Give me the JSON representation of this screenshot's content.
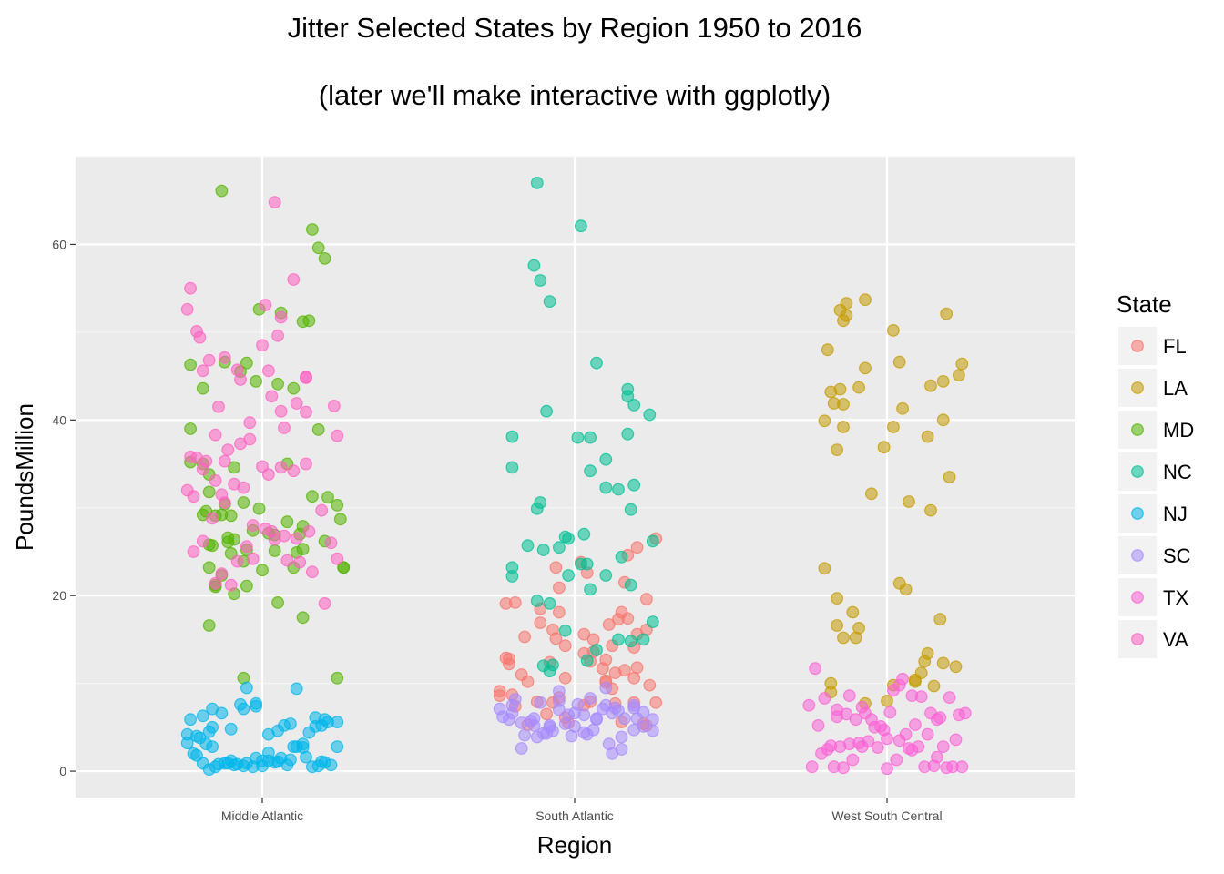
{
  "chart_data": {
    "type": "scatter",
    "title": "Jitter Selected States by Region 1950 to 2016",
    "subtitle": "(later we'll make interactive with ggplotly)",
    "xlabel": "Region",
    "ylabel": "PoundsMillion",
    "categories": [
      "Middle Atlantic",
      "South Atlantic",
      "West South Central"
    ],
    "ylim": [
      -3,
      70
    ],
    "yticks": [
      0,
      20,
      40,
      60
    ],
    "grid": true,
    "legend": {
      "title": "State",
      "position": "right"
    },
    "series": [
      {
        "name": "FL",
        "color": "#F8766D",
        "category": "South Atlantic",
        "x": [
          0.26,
          -0.06,
          -0.19,
          0.02,
          -0.05,
          0.2,
          0.17,
          -0.22,
          -0.11,
          0.04,
          0.16,
          0.23,
          -0.05,
          -0.11,
          0.15,
          -0.07,
          0.17,
          -0.16,
          0.11,
          0.14,
          0.23,
          0.2,
          -0.03,
          0.03,
          -0.06,
          0.06,
          0.12,
          -0.22,
          0.06,
          0.19,
          0.03,
          -0.21,
          -0.08,
          0.05,
          0.2,
          0.16,
          -0.17,
          0.1,
          -0.15,
          0.09,
          -0.21,
          0.19,
          -0.24,
          0.1,
          0.13,
          0.1,
          -0.03,
          0.24,
          0.12,
          -0.05,
          -0.2,
          -0.24,
          -0.07,
          0.13,
          0.19,
          -0.12,
          0.05,
          -0.19,
          -0.02,
          0.22,
          0.23,
          -0.03,
          -0.09,
          -0.15,
          0.15,
          0.03,
          0.26
        ],
        "y": [
          26.5,
          23.2,
          19.2,
          23.8,
          20.9,
          25.5,
          24.6,
          19.1,
          18.5,
          22.6,
          21.5,
          19.6,
          18.1,
          16.9,
          18.1,
          16.1,
          17.4,
          15.3,
          16.7,
          17.3,
          16.1,
          15.6,
          14.3,
          15.6,
          15.1,
          15.0,
          14.3,
          12.9,
          13.6,
          14.1,
          13.4,
          12.2,
          12.4,
          12.5,
          11.8,
          11.5,
          11.0,
          12.7,
          10.2,
          11.7,
          12.8,
          10.6,
          9.1,
          10.1,
          11.2,
          10.3,
          10.6,
          9.8,
          9.4,
          8.4,
          8.7,
          8.6,
          7.8,
          7.7,
          7.8,
          7.9,
          7.9,
          7.4,
          5.5,
          5.4,
          5.2,
          6.1,
          6.5,
          5.3,
          5.6,
          7.5,
          7.8
        ]
      },
      {
        "name": "LA",
        "color": "#C49A00",
        "category": "West South Central",
        "x": [
          -0.13,
          -0.15,
          -0.07,
          -0.14,
          0.02,
          0.19,
          0.18,
          -0.19,
          -0.13,
          -0.07,
          -0.18,
          0.04,
          0.24,
          -0.14,
          -0.2,
          0.23,
          -0.16,
          0.02,
          0.14,
          0.05,
          -0.09,
          0.13,
          -0.14,
          -0.01,
          -0.15,
          -0.17,
          0.18,
          -0.05,
          0.2,
          0.14,
          0.07,
          0.06,
          0.04,
          -0.16,
          -0.2,
          0.17,
          -0.11,
          -0.1,
          -0.09,
          -0.16,
          -0.14,
          0.13,
          0.09,
          0.12,
          0.09,
          0.18,
          0.22,
          0.02,
          0.15,
          0.11,
          -0.18,
          -0.18,
          0.0,
          -0.07
        ],
        "y": [
          53.3,
          52.5,
          53.7,
          51.3,
          50.2,
          52.1,
          44.4,
          48.0,
          51.9,
          45.9,
          43.2,
          46.6,
          46.4,
          41.8,
          39.9,
          45.1,
          36.6,
          39.2,
          43.9,
          41.3,
          43.7,
          38.1,
          39.2,
          36.9,
          43.5,
          41.9,
          40.0,
          31.6,
          33.5,
          29.7,
          30.7,
          20.7,
          21.4,
          19.7,
          23.1,
          17.3,
          18.1,
          15.2,
          16.3,
          16.6,
          15.2,
          13.4,
          10.2,
          12.5,
          10.4,
          12.3,
          11.9,
          9.8,
          9.7,
          11.2,
          10.0,
          9.0,
          8.0,
          7.7
        ]
      },
      {
        "name": "MD",
        "color": "#53B400",
        "category": "Middle Atlantic",
        "x": [
          -0.13,
          0.16,
          0.18,
          0.13,
          -0.01,
          0.2,
          0.06,
          -0.23,
          -0.12,
          0.15,
          -0.05,
          -0.02,
          0.05,
          0.1,
          -0.07,
          -0.23,
          -0.19,
          -0.17,
          0.08,
          0.18,
          0.25,
          0.21,
          0.16,
          -0.23,
          -0.09,
          -0.19,
          -0.18,
          -0.15,
          -0.19,
          -0.12,
          -0.17,
          -0.06,
          0.08,
          0.02,
          -0.13,
          -0.1,
          -0.16,
          -0.01,
          0.24,
          -0.03,
          0.12,
          -0.11,
          -0.09,
          -0.17,
          -0.05,
          0.04,
          0.1,
          0.11,
          -0.06,
          0.0,
          -0.13,
          0.2,
          0.13,
          0.13,
          -0.11,
          0.04,
          -0.15,
          0.26,
          0.26,
          -0.05,
          -0.17,
          -0.1,
          -0.15,
          -0.09,
          0.05,
          -0.17,
          0.13,
          -0.06,
          0.24
        ],
        "y": [
          66.1,
          61.7,
          59.6,
          51.2,
          52.6,
          58.4,
          52.2,
          46.3,
          46.6,
          51.3,
          46.5,
          44.4,
          44.1,
          43.6,
          45.5,
          39.0,
          43.6,
          33.8,
          35.0,
          38.9,
          28.7,
          31.2,
          31.3,
          35.2,
          34.6,
          35.0,
          29.6,
          29.1,
          29.2,
          30.4,
          31.8,
          30.6,
          28.4,
          27.1,
          29.2,
          29.1,
          25.7,
          29.9,
          30.3,
          27.4,
          27.0,
          26.6,
          26.4,
          25.8,
          25.2,
          26.9,
          23.2,
          24.9,
          23.9,
          22.9,
          22.3,
          26.2,
          25.3,
          27.9,
          26.1,
          25.1,
          21.2,
          23.2,
          23.2,
          21.1,
          23.2,
          24.8,
          21.0,
          20.2,
          19.2,
          16.6,
          17.5,
          10.6,
          10.6
        ]
      },
      {
        "name": "NC",
        "color": "#00C094",
        "category": "South Atlantic",
        "x": [
          -0.12,
          0.02,
          -0.13,
          -0.11,
          -0.08,
          0.07,
          0.17,
          0.17,
          0.19,
          -0.09,
          0.17,
          0.24,
          0.25,
          -0.2,
          -0.2,
          0.01,
          0.05,
          0.05,
          0.1,
          0.14,
          0.1,
          -0.11,
          -0.2,
          -0.15,
          0.18,
          -0.1,
          -0.12,
          -0.03,
          -0.12,
          0.19,
          0.22,
          -0.02,
          0.04,
          0.15,
          0.02,
          -0.05,
          -0.2,
          0.18,
          -0.02,
          0.03,
          -0.08,
          0.04,
          0.07,
          0.05,
          -0.03,
          0.18,
          0.1,
          -0.07,
          0.14,
          -0.08,
          -0.1,
          0.25
        ],
        "y": [
          67.0,
          62.1,
          57.6,
          55.9,
          53.5,
          46.5,
          43.5,
          42.7,
          41.7,
          41.0,
          38.4,
          40.6,
          26.2,
          38.1,
          34.6,
          38.0,
          38.0,
          34.2,
          32.3,
          32.1,
          35.5,
          30.6,
          22.2,
          25.7,
          29.8,
          25.2,
          29.9,
          26.7,
          19.4,
          32.6,
          15.0,
          22.3,
          23.6,
          24.4,
          23.6,
          25.5,
          23.2,
          21.2,
          26.5,
          27.0,
          19.1,
          12.6,
          13.8,
          20.7,
          16.0,
          14.8,
          22.3,
          12.1,
          15.0,
          11.4,
          12.0,
          17.0
        ]
      },
      {
        "name": "NJ",
        "color": "#00B6EB",
        "category": "Middle Atlantic",
        "x": [
          -0.23,
          -0.19,
          -0.2,
          -0.17,
          -0.16,
          -0.13,
          -0.1,
          -0.07,
          -0.05,
          -0.02,
          0.02,
          0.05,
          0.07,
          0.09,
          0.11,
          0.13,
          0.17,
          0.19,
          0.2,
          0.21,
          0.24,
          0.24,
          -0.24,
          -0.22,
          -0.21,
          -0.19,
          -0.17,
          -0.15,
          -0.12,
          -0.1,
          -0.08,
          -0.05,
          -0.02,
          0.0,
          0.02,
          0.04,
          0.06,
          0.09,
          0.11,
          0.14,
          0.16,
          0.18,
          0.2,
          -0.24,
          -0.21,
          -0.18,
          -0.16,
          -0.14,
          -0.11,
          -0.09,
          -0.06,
          -0.03,
          0.0,
          0.02,
          0.05,
          0.08,
          0.1,
          0.13,
          0.15,
          0.17,
          0.19,
          0.22,
          -0.02,
          -0.06,
          -0.16
        ],
        "y": [
          5.9,
          6.3,
          3.8,
          4.5,
          5.0,
          6.6,
          4.8,
          7.6,
          9.5,
          7.7,
          4.2,
          4.6,
          5.2,
          5.4,
          9.4,
          3.1,
          6.1,
          5.2,
          5.9,
          5.6,
          2.8,
          5.6,
          3.2,
          2.0,
          1.8,
          0.9,
          0.2,
          0.5,
          0.9,
          1.2,
          0.8,
          0.9,
          1.5,
          1.2,
          2.1,
          1.0,
          1.5,
          1.3,
          2.8,
          1.6,
          0.5,
          0.6,
          1.0,
          4.2,
          4.0,
          3.1,
          2.8,
          0.8,
          0.9,
          0.7,
          0.6,
          0.5,
          0.6,
          1.2,
          1.1,
          0.7,
          2.8,
          2.7,
          4.4,
          5.1,
          1.1,
          0.7,
          7.4,
          7.1,
          7.1
        ]
      },
      {
        "name": "SC",
        "color": "#A58AFF",
        "category": "South Atlantic",
        "x": [
          -0.24,
          -0.2,
          -0.17,
          -0.14,
          -0.11,
          -0.08,
          -0.05,
          -0.02,
          0.01,
          0.04,
          0.07,
          0.1,
          0.13,
          0.16,
          0.19,
          0.22,
          0.25,
          -0.23,
          -0.2,
          -0.16,
          -0.13,
          -0.1,
          -0.07,
          -0.03,
          0.0,
          0.03,
          0.06,
          0.09,
          0.12,
          0.15,
          0.19,
          0.22,
          0.25,
          -0.21,
          -0.17,
          -0.13,
          -0.09,
          -0.05,
          -0.01,
          0.03,
          0.07,
          0.11,
          0.15,
          0.19,
          -0.19,
          -0.05,
          0.05,
          0.14,
          -0.12,
          0.0,
          0.1,
          0.2,
          -0.08,
          0.12
        ],
        "y": [
          7.1,
          6.6,
          5.5,
          5.7,
          7.8,
          5.2,
          8.0,
          6.4,
          7.6,
          4.2,
          5.9,
          7.5,
          7.2,
          6.0,
          7.2,
          6.7,
          5.9,
          6.2,
          7.5,
          4.1,
          5.2,
          4.3,
          4.6,
          5.4,
          6.6,
          6.4,
          4.7,
          7.1,
          6.6,
          3.9,
          7.5,
          5.1,
          4.6,
          5.9,
          2.6,
          6.0,
          4.3,
          7.0,
          4.0,
          4.4,
          6.0,
          3.1,
          2.5,
          4.7,
          8.2,
          9.1,
          8.3,
          6.9,
          3.9,
          5.1,
          9.5,
          6.0,
          5.0,
          2.0
        ]
      },
      {
        "name": "TX",
        "color": "#FB61D7",
        "category": "West South Central",
        "x": [
          -0.25,
          -0.22,
          -0.19,
          -0.16,
          -0.13,
          -0.1,
          -0.07,
          -0.04,
          -0.01,
          0.02,
          0.05,
          0.08,
          0.11,
          0.14,
          0.17,
          0.2,
          0.23,
          0.25,
          -0.23,
          -0.2,
          -0.17,
          -0.14,
          -0.11,
          -0.08,
          -0.05,
          -0.02,
          0.01,
          0.04,
          0.07,
          0.1,
          0.13,
          0.16,
          0.19,
          0.22,
          0.24,
          -0.21,
          -0.18,
          -0.15,
          -0.12,
          -0.09,
          -0.06,
          -0.03,
          0.0,
          0.03,
          0.06,
          0.09,
          0.12,
          0.15,
          0.18,
          0.21,
          -0.24,
          -0.16,
          -0.08,
          0.0,
          0.08,
          0.16,
          -0.12,
          0.04
        ],
        "y": [
          7.5,
          5.2,
          2.5,
          6.2,
          6.5,
          5.9,
          6.6,
          5.0,
          4.7,
          9.2,
          10.5,
          8.6,
          8.5,
          6.6,
          6.1,
          8.4,
          6.4,
          6.6,
          11.7,
          8.3,
          0.5,
          0.4,
          1.3,
          7.3,
          5.9,
          5.1,
          6.7,
          3.5,
          2.6,
          2.8,
          4.2,
          5.9,
          0.4,
          3.6,
          0.5,
          2.0,
          2.9,
          2.8,
          3.1,
          3.2,
          3.4,
          2.7,
          0.3,
          1.3,
          4.2,
          5.3,
          0.5,
          0.6,
          2.8,
          0.5,
          0.5,
          7.0,
          2.8,
          3.7,
          2.4,
          1.6,
          8.6,
          9.8
        ]
      },
      {
        "name": "VA",
        "color": "#FF61C3",
        "category": "Middle Atlantic",
        "x": [
          0.04,
          0.1,
          -0.23,
          -0.24,
          -0.21,
          -0.2,
          -0.17,
          0.01,
          0.06,
          0.05,
          0.14,
          0.23,
          0.24,
          -0.19,
          -0.14,
          -0.15,
          -0.21,
          -0.23,
          -0.12,
          0.0,
          0.02,
          -0.07,
          0.03,
          0.06,
          0.11,
          0.14,
          -0.04,
          0.07,
          -0.04,
          -0.07,
          -0.11,
          -0.19,
          -0.13,
          -0.24,
          -0.22,
          -0.16,
          -0.12,
          -0.09,
          -0.06,
          -0.03,
          0.01,
          0.04,
          0.07,
          0.11,
          0.15,
          0.19,
          0.22,
          0.24,
          -0.19,
          -0.13,
          -0.08,
          -0.03,
          0.03,
          0.08,
          0.12,
          0.16,
          0.2,
          -0.22,
          -0.15,
          -0.1,
          -0.05,
          0.0,
          0.06,
          0.1,
          0.14,
          -0.15,
          0.02,
          -0.18,
          0.14,
          -0.12,
          -0.08
        ],
        "y": [
          64.8,
          56.0,
          55.0,
          52.6,
          50.1,
          49.4,
          46.8,
          53.1,
          51.7,
          49.6,
          44.9,
          41.6,
          38.2,
          45.6,
          41.5,
          38.3,
          35.7,
          35.8,
          35.3,
          48.5,
          45.6,
          44.6,
          42.7,
          41.0,
          41.9,
          35.0,
          39.7,
          39.1,
          37.8,
          37.3,
          36.6,
          34.4,
          31.5,
          32.0,
          31.3,
          28.8,
          30.6,
          32.7,
          32.3,
          28.0,
          27.6,
          26.4,
          26.8,
          26.5,
          27.3,
          29.7,
          26.0,
          24.2,
          26.2,
          22.5,
          23.9,
          24.2,
          27.3,
          24.0,
          23.8,
          22.7,
          19.1,
          25.0,
          21.4,
          21.2,
          25.6,
          34.7,
          34.6,
          34.2,
          44.8,
          33.1,
          33.8,
          35.3,
          40.9,
          47.1,
          45.7
        ]
      }
    ]
  }
}
